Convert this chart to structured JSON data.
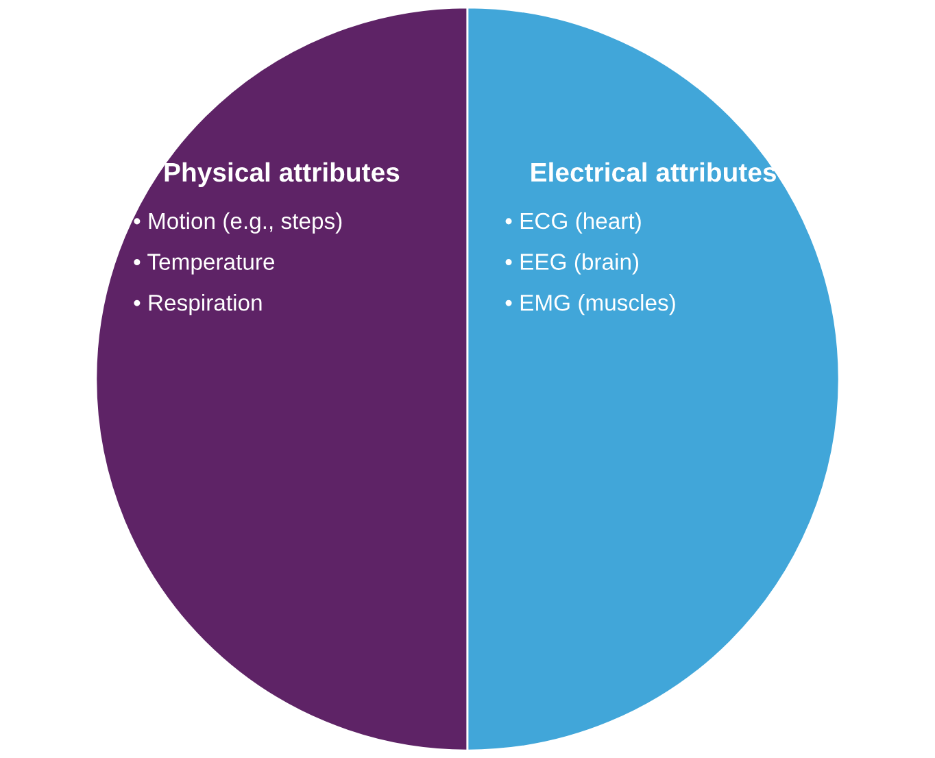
{
  "chart_data": {
    "type": "pie",
    "categories": [
      "Physical attributes",
      "Electrical attributes"
    ],
    "values": [
      50,
      50
    ],
    "colors": [
      "#5e2366",
      "#41a6d9"
    ],
    "annotations": [
      "• Motion (e.g., steps)",
      "• Temperature",
      "• Respiration",
      "• ECG (heart)",
      "• EEG (brain)",
      "• EMG (muscles)"
    ]
  }
}
